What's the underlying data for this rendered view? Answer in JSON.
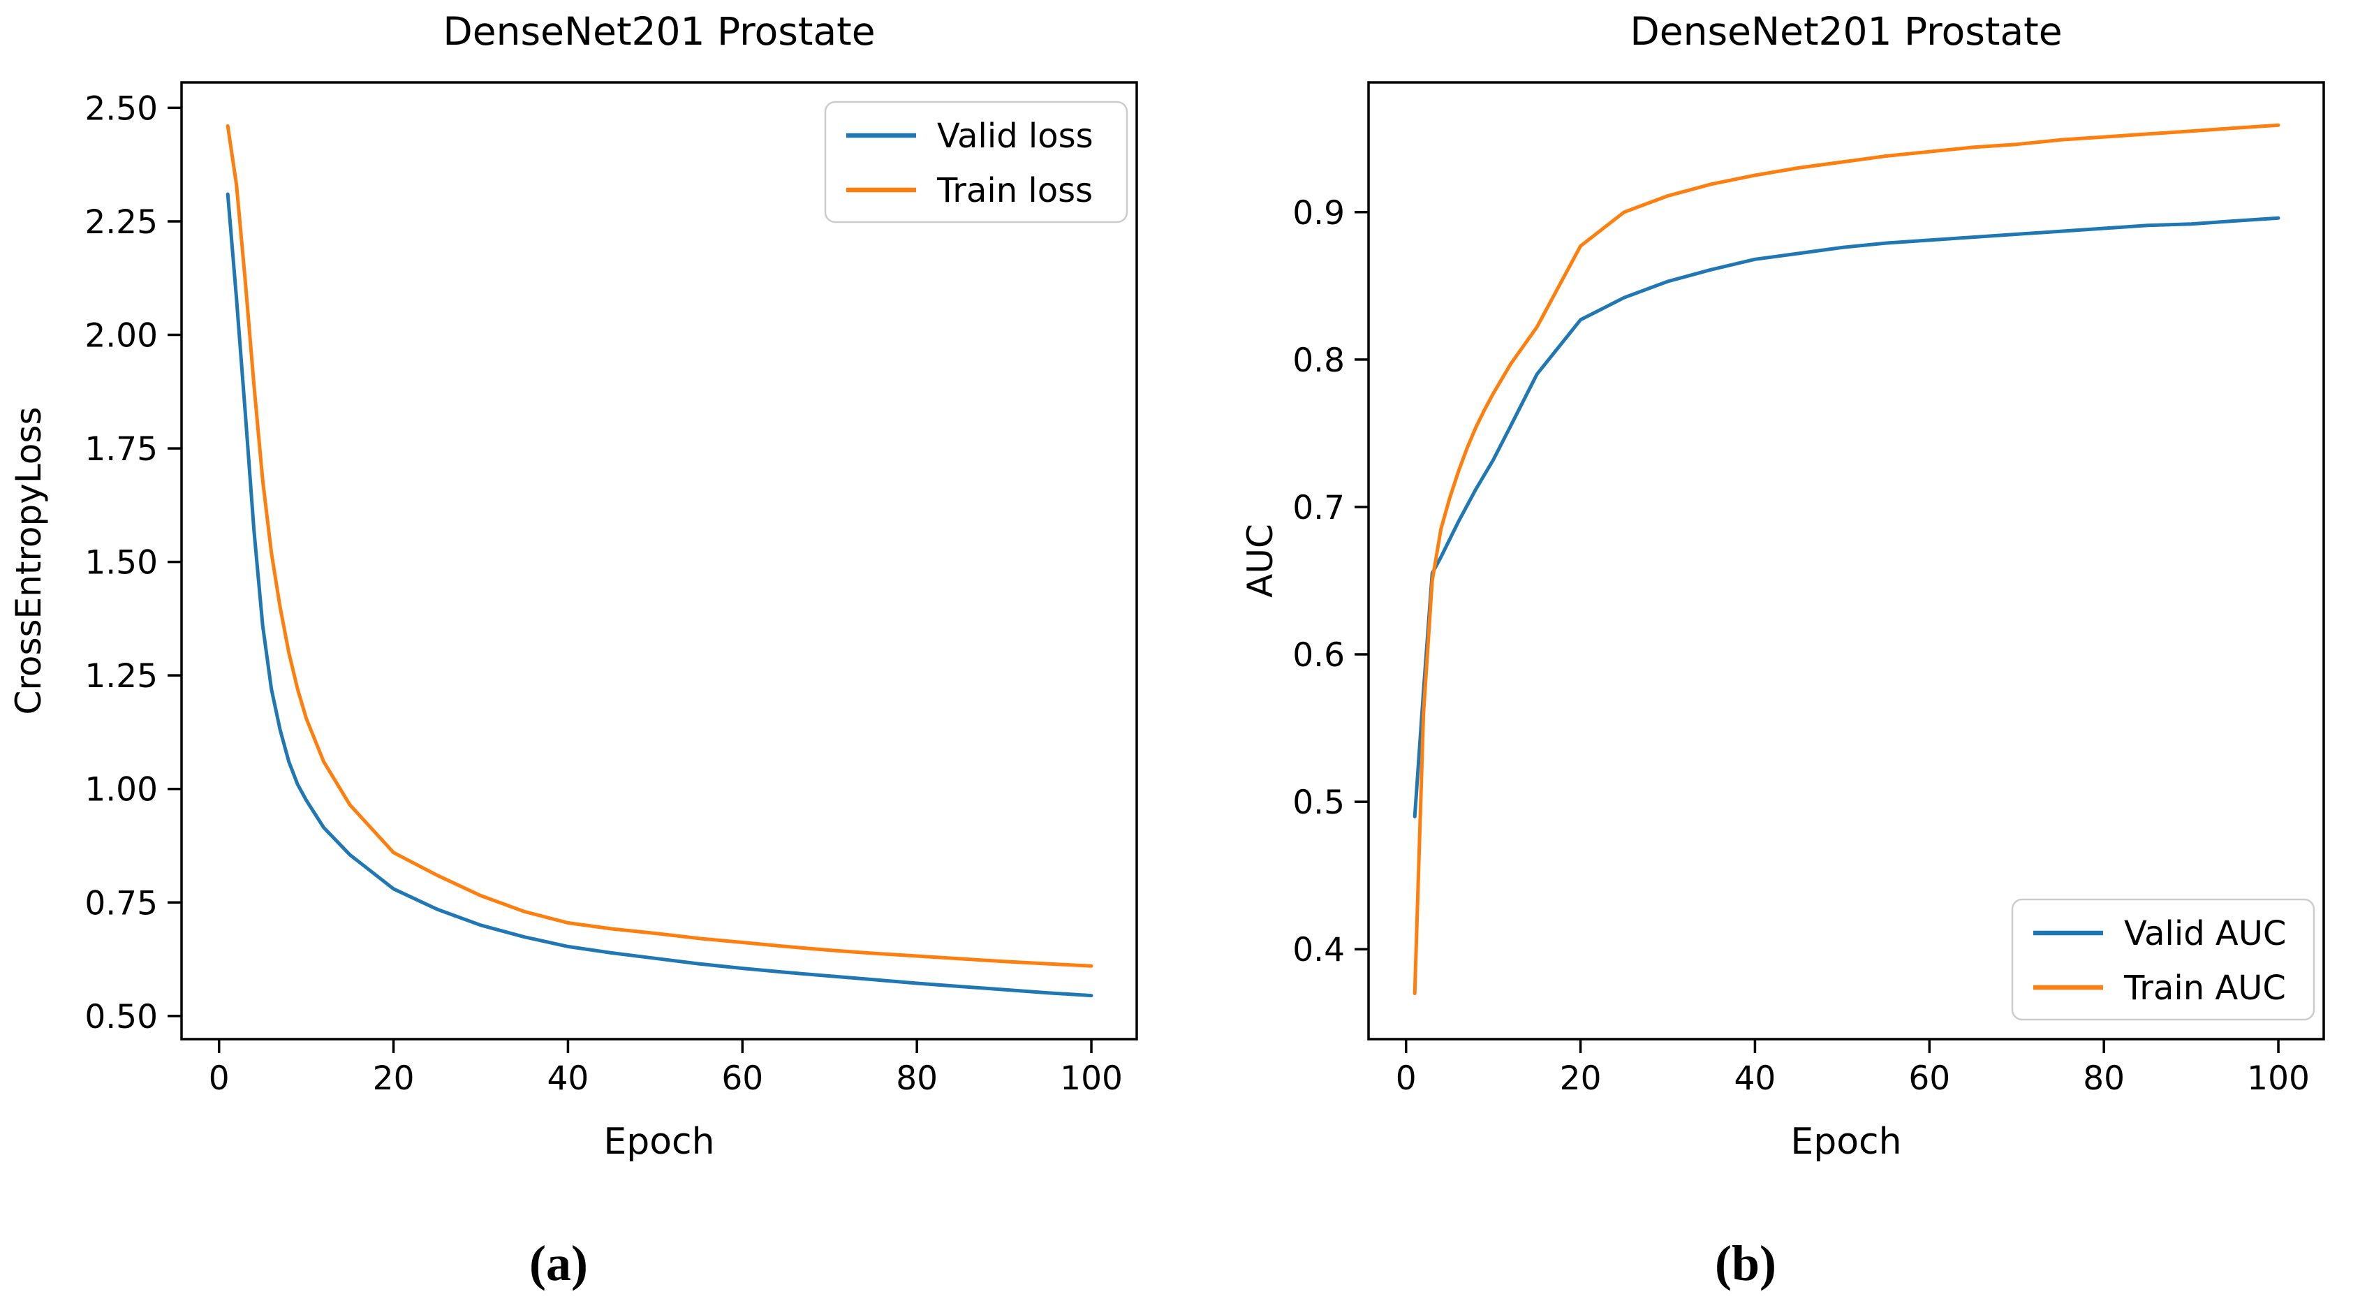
{
  "figure": {
    "background": "#ffffff",
    "description_titles": [
      "DenseNet201 Prostate",
      "DenseNet201 Prostate"
    ]
  },
  "panels": [
    {
      "caption": "(a)"
    },
    {
      "caption": "(b)"
    }
  ],
  "colors": {
    "valid": "#1f77b4",
    "train": "#ff7f0e",
    "spine": "#000000",
    "legend_border": "#cccccc",
    "text": "#000000"
  },
  "chart_data": [
    {
      "type": "line",
      "title": "DenseNet201 Prostate",
      "xlabel": "Epoch",
      "ylabel": "CrossEntropyLoss",
      "grid": false,
      "xlim": [
        -4.3,
        105.2
      ],
      "ylim": [
        0.449,
        2.556
      ],
      "xticks": [
        "0",
        "20",
        "40",
        "60",
        "80",
        "100"
      ],
      "yticks": [
        "2.50",
        "2.25",
        "2.00",
        "1.75",
        "1.50",
        "1.25",
        "1.00",
        "0.75",
        "0.50"
      ],
      "x": [
        1,
        2,
        3,
        4,
        5,
        6,
        7,
        8,
        9,
        10,
        12,
        15,
        20,
        25,
        30,
        35,
        40,
        45,
        50,
        55,
        60,
        65,
        70,
        75,
        80,
        85,
        90,
        95,
        100
      ],
      "series": [
        {
          "name": "Valid loss",
          "color_key": "valid",
          "values": [
            2.31,
            2.08,
            1.83,
            1.57,
            1.36,
            1.22,
            1.13,
            1.06,
            1.01,
            0.975,
            0.915,
            0.855,
            0.78,
            0.735,
            0.7,
            0.674,
            0.653,
            0.639,
            0.627,
            0.615,
            0.605,
            0.596,
            0.588,
            0.58,
            0.572,
            0.565,
            0.558,
            0.551,
            0.545
          ]
        },
        {
          "name": "Train loss",
          "color_key": "train",
          "values": [
            2.46,
            2.33,
            2.12,
            1.89,
            1.68,
            1.52,
            1.4,
            1.3,
            1.22,
            1.155,
            1.06,
            0.965,
            0.86,
            0.81,
            0.765,
            0.73,
            0.705,
            0.692,
            0.682,
            0.671,
            0.662,
            0.653,
            0.645,
            0.638,
            0.632,
            0.626,
            0.62,
            0.615,
            0.61
          ]
        }
      ],
      "legend": {
        "loc": "upper right",
        "labels": [
          "Valid loss",
          "Train loss"
        ]
      }
    },
    {
      "type": "line",
      "title": "DenseNet201 Prostate",
      "xlabel": "Epoch",
      "ylabel": "AUC",
      "grid": false,
      "xlim": [
        -4.3,
        105.2
      ],
      "ylim": [
        0.339,
        0.988
      ],
      "xticks": [
        "0",
        "20",
        "40",
        "60",
        "80",
        "100"
      ],
      "yticks": [
        "0.4",
        "0.5",
        "0.6",
        "0.7",
        "0.8",
        "0.9"
      ],
      "x": [
        1,
        2,
        3,
        4,
        5,
        6,
        7,
        8,
        9,
        10,
        12,
        15,
        20,
        25,
        30,
        35,
        40,
        45,
        50,
        55,
        60,
        65,
        70,
        75,
        80,
        85,
        90,
        95,
        100
      ],
      "series": [
        {
          "name": "Valid AUC",
          "color_key": "valid",
          "values": [
            0.49,
            0.575,
            0.655,
            0.666,
            0.678,
            0.69,
            0.701,
            0.712,
            0.722,
            0.732,
            0.755,
            0.79,
            0.827,
            0.842,
            0.853,
            0.861,
            0.868,
            0.872,
            0.876,
            0.879,
            0.881,
            0.883,
            0.885,
            0.887,
            0.889,
            0.891,
            0.892,
            0.894,
            0.896
          ]
        },
        {
          "name": "Train AUC",
          "color_key": "train",
          "values": [
            0.37,
            0.56,
            0.65,
            0.685,
            0.706,
            0.724,
            0.74,
            0.754,
            0.766,
            0.777,
            0.797,
            0.822,
            0.877,
            0.9,
            0.911,
            0.919,
            0.925,
            0.93,
            0.934,
            0.938,
            0.941,
            0.944,
            0.946,
            0.949,
            0.951,
            0.953,
            0.955,
            0.957,
            0.959
          ]
        }
      ],
      "legend": {
        "loc": "lower right",
        "labels": [
          "Valid AUC",
          "Train AUC"
        ]
      }
    }
  ]
}
